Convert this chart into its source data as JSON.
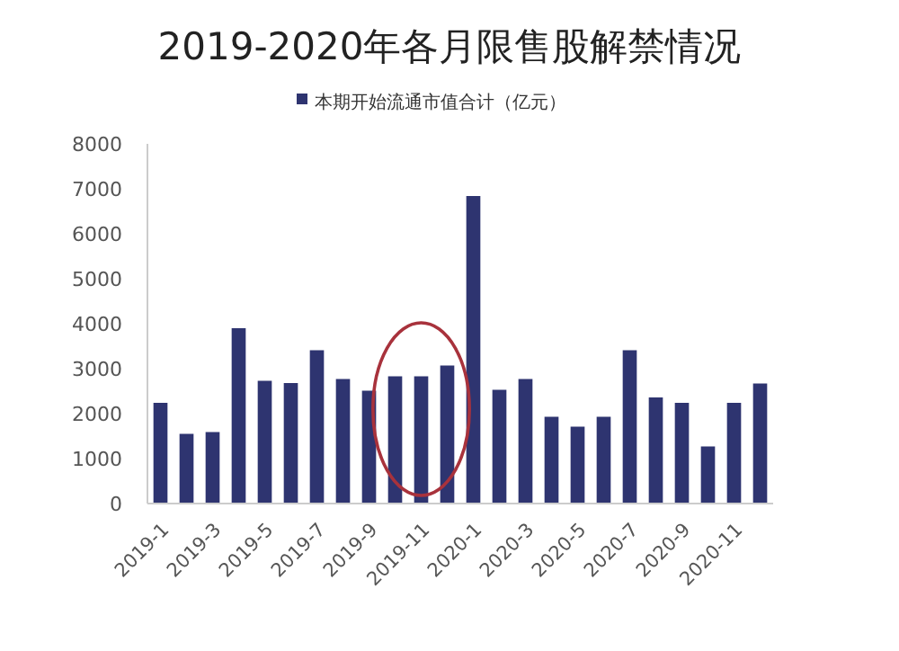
{
  "chart_data": {
    "type": "bar",
    "title": "2019-2020年各月限售股解禁情况",
    "categories": [
      "2019-1",
      null,
      "2019-3",
      null,
      "2019-5",
      null,
      "2019-7",
      null,
      "2019-9",
      null,
      "2019-11",
      null,
      "2020-1",
      null,
      "2020-3",
      null,
      "2020-5",
      null,
      "2020-7",
      null,
      "2020-9",
      null,
      "2020-11",
      null
    ],
    "series": [
      {
        "name": "本期开始流通市值合计（亿元）",
        "color": "#2e3470",
        "values": [
          2240,
          1550,
          1590,
          3900,
          2730,
          2680,
          3410,
          2770,
          2510,
          2830,
          2830,
          3070,
          6840,
          2530,
          2770,
          1930,
          1710,
          1930,
          3410,
          2360,
          2240,
          1270,
          2240,
          2670
        ]
      }
    ],
    "ylim": [
      0,
      8000
    ],
    "yticks": [
      0,
      1000,
      2000,
      3000,
      4000,
      5000,
      6000,
      7000,
      8000
    ],
    "grid": false,
    "legend": "top"
  }
}
